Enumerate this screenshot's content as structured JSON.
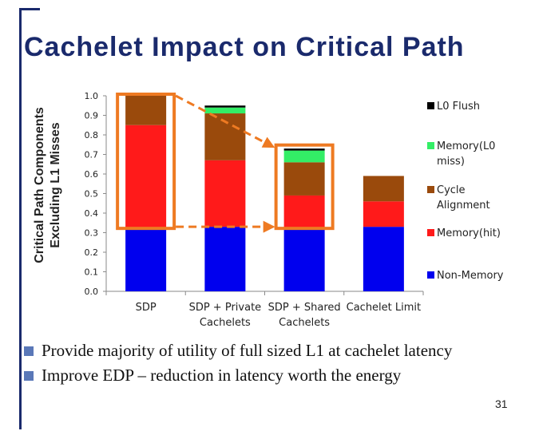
{
  "slide": {
    "title": "Cachelet Impact on Critical Path",
    "bullets": [
      "Provide majority of utility of full sized L1 at cachelet latency",
      "Improve EDP – reduction in latency worth the energy"
    ],
    "page_number": "31"
  },
  "chart_data": {
    "type": "bar",
    "stacked": true,
    "ylabel": "Critical Path Components Excluding L1 Misses",
    "ylabel_lines": [
      "Critical Path Components",
      "Excluding L1 Misses"
    ],
    "ylim": [
      0,
      1.0
    ],
    "yticks": [
      "0.0",
      "0.1",
      "0.2",
      "0.3",
      "0.4",
      "0.5",
      "0.6",
      "0.7",
      "0.8",
      "0.9",
      "1.0"
    ],
    "categories": [
      "SDP",
      "SDP + Private Cachelets",
      "SDP + Shared Cachelets",
      "Cachelet Limit"
    ],
    "category_lines": [
      [
        "SDP"
      ],
      [
        "SDP + Private",
        "Cachelets"
      ],
      [
        "SDP + Shared",
        "Cachelets"
      ],
      [
        "Cachelet Limit"
      ]
    ],
    "series": [
      {
        "name": "Non-Memory",
        "color": "#0000ee",
        "values": [
          0.32,
          0.33,
          0.32,
          0.33
        ]
      },
      {
        "name": "Memory(hit)",
        "color": "#ff1a1a",
        "values": [
          0.53,
          0.34,
          0.17,
          0.13
        ]
      },
      {
        "name": "Cycle Alignment",
        "color": "#9a4a0c",
        "values": [
          0.15,
          0.24,
          0.17,
          0.13
        ]
      },
      {
        "name": "Memory(L0 miss)",
        "color": "#33ee66",
        "values": [
          0.0,
          0.03,
          0.06,
          0.0
        ]
      },
      {
        "name": "L0 Flush",
        "color": "#000000",
        "values": [
          0.0,
          0.01,
          0.01,
          0.0
        ]
      }
    ],
    "legend_order": [
      "L0 Flush",
      "Memory(L0 miss)",
      "Cycle Alignment",
      "Memory(hit)",
      "Non-Memory"
    ],
    "legend_lines": {
      "L0 Flush": [
        "L0 Flush"
      ],
      "Memory(L0 miss)": [
        "Memory(L0",
        "miss)"
      ],
      "Cycle Alignment": [
        "Cycle",
        "Alignment"
      ],
      "Memory(hit)": [
        "Memory(hit)"
      ],
      "Non-Memory": [
        "Non-Memory"
      ]
    },
    "legend_position": "right",
    "annotation_color": "#ee7a22",
    "highlight_boxes": [
      {
        "category": 0,
        "from": 0.33,
        "to": 1.0
      },
      {
        "category": 2,
        "from": 0.33,
        "to": 0.74
      }
    ],
    "arrows": [
      {
        "from_category": 0,
        "to_category": 2,
        "from_value": 1.0,
        "to_value": 0.74
      },
      {
        "from_category": 0,
        "to_category": 2,
        "from_value": 0.33,
        "to_value": 0.33
      }
    ]
  }
}
